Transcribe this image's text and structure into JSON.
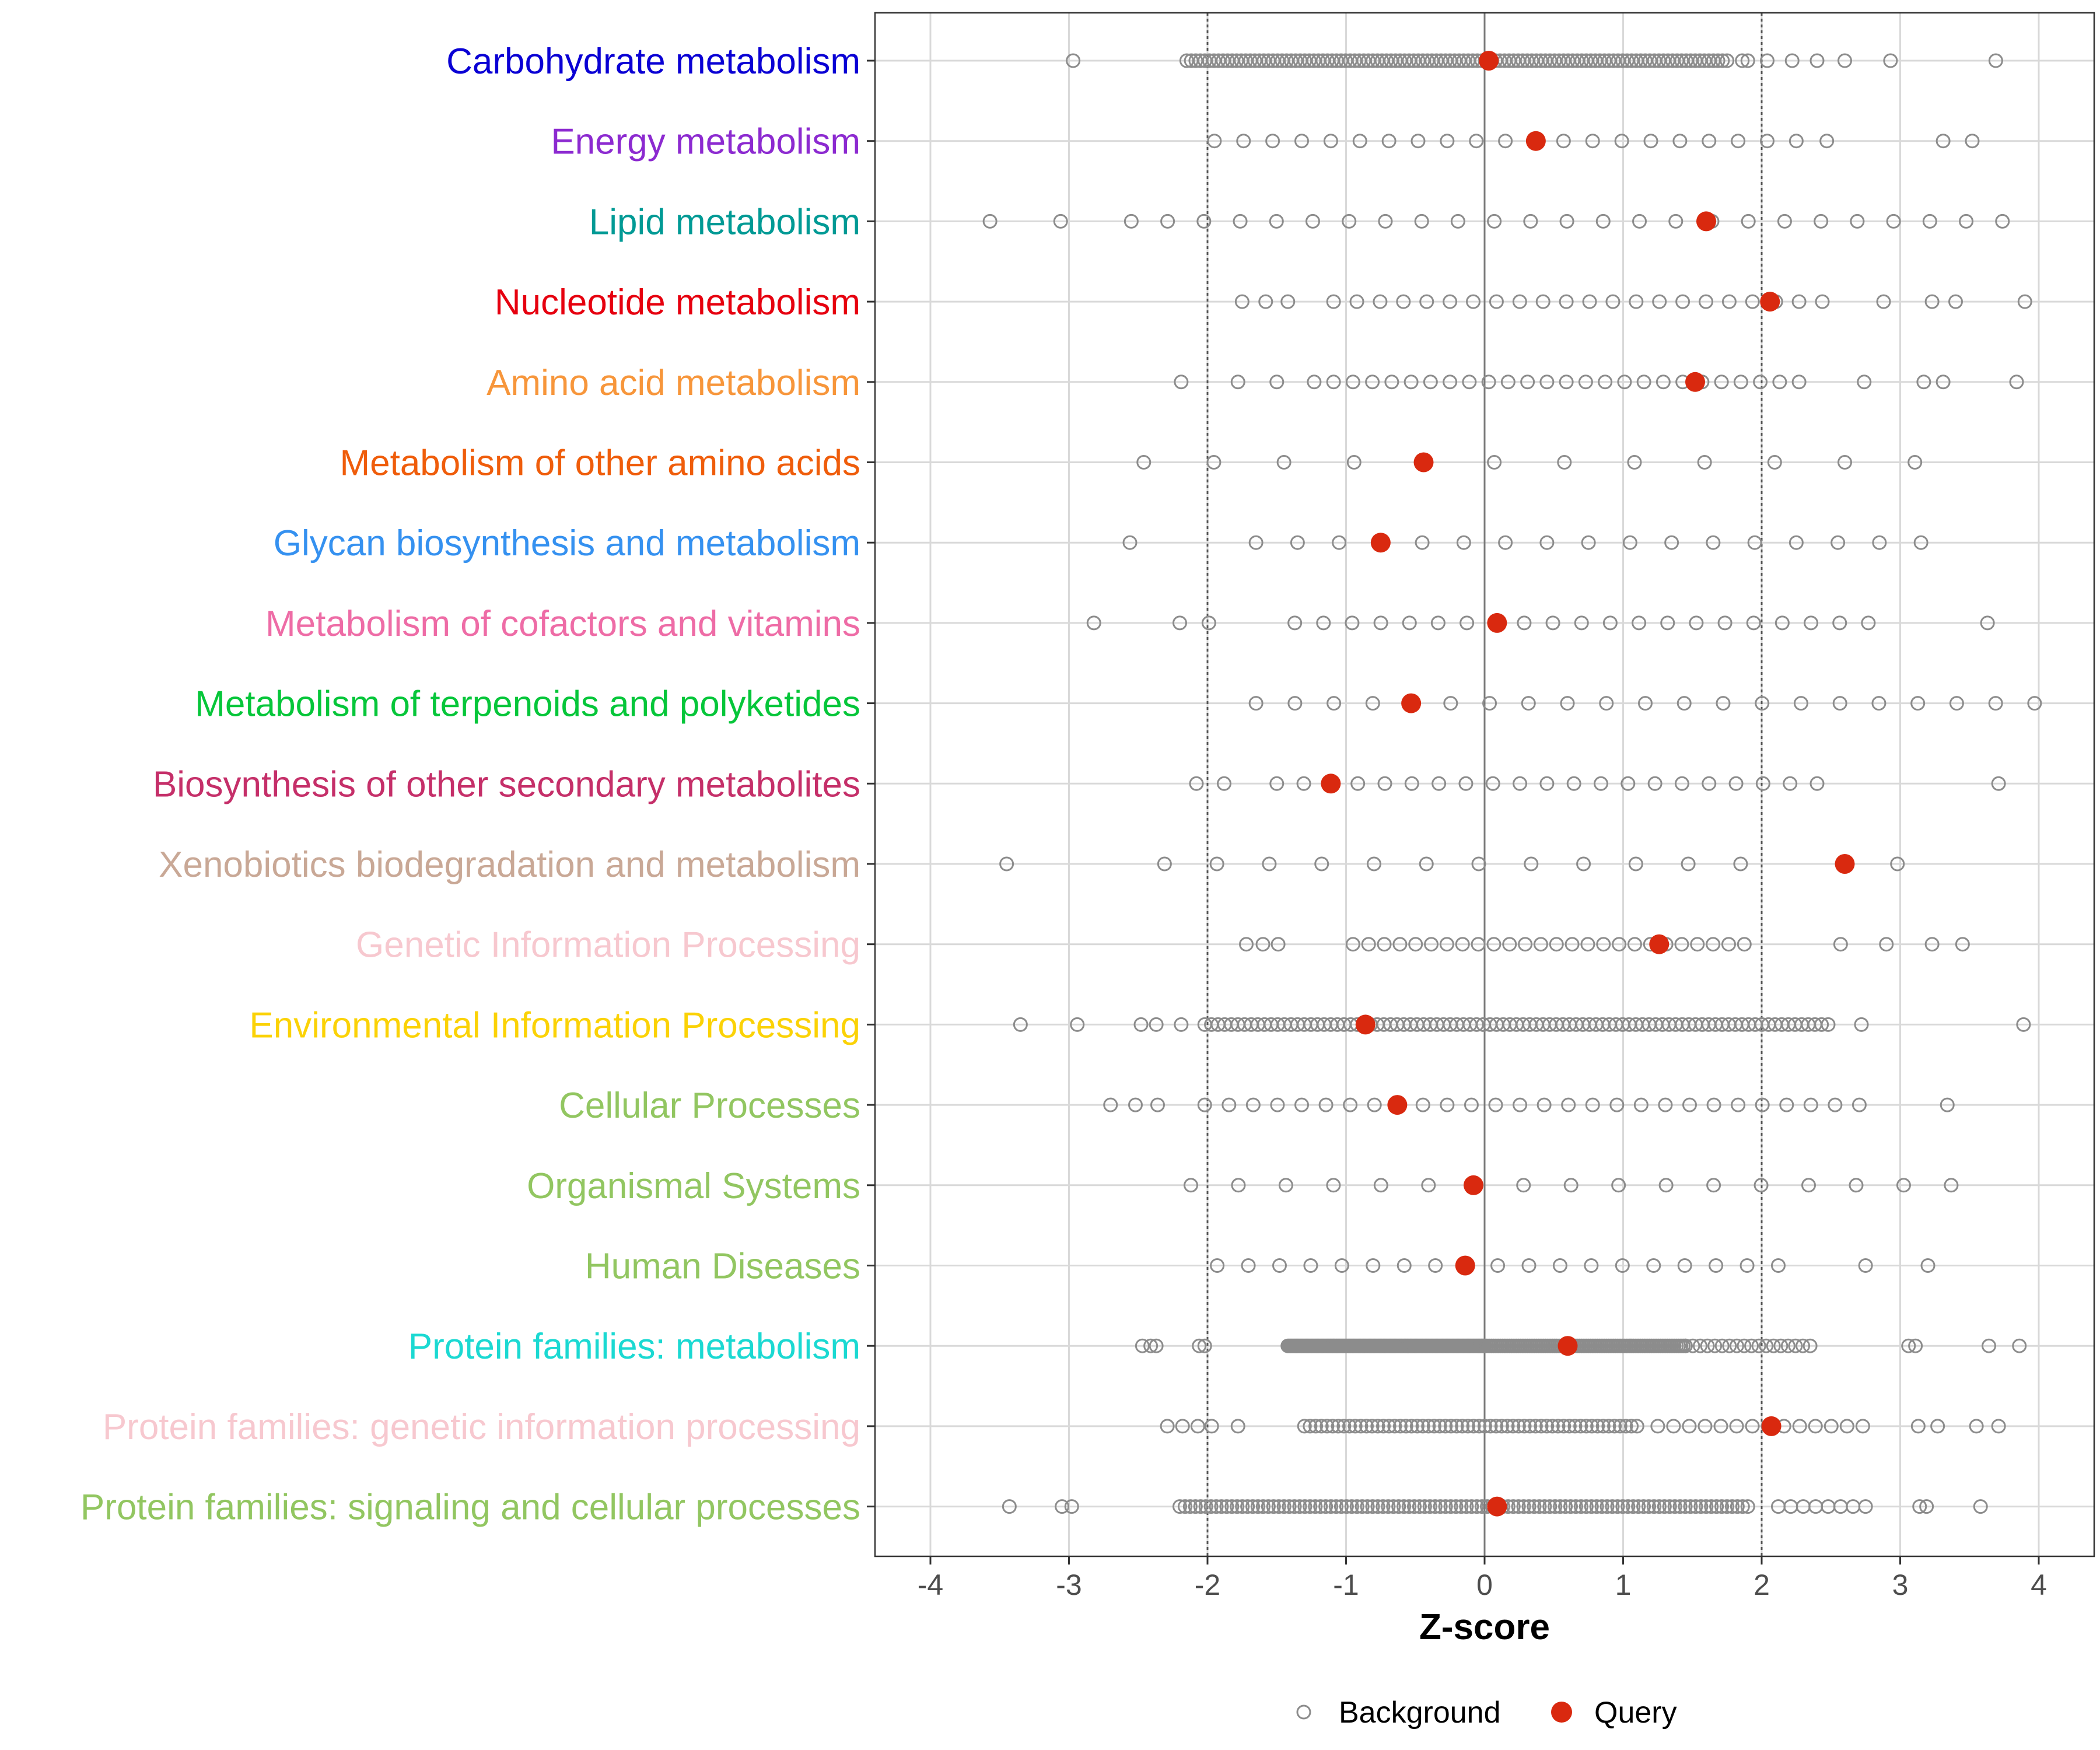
{
  "chart_data": {
    "type": "scatter",
    "title": "",
    "xlabel": "Z-score",
    "ylabel": "",
    "xlim": [
      -4.4,
      4.4
    ],
    "x_ticks": [
      -4,
      -3,
      -2,
      -1,
      0,
      1,
      2,
      3,
      4
    ],
    "x_tick_labels": [
      "-4",
      "-3",
      "-2",
      "-1",
      "0",
      "1",
      "2",
      "3",
      "4"
    ],
    "reference_lines": [
      -2,
      0,
      2
    ],
    "grid": true,
    "legend": {
      "position": "bottom",
      "items": [
        {
          "key": "background",
          "label": "Background",
          "marker": "open-circle",
          "color": "#8c8c8c"
        },
        {
          "key": "query",
          "label": "Query",
          "marker": "filled-circle",
          "color": "#d9290f"
        }
      ]
    },
    "categories": [
      {
        "label": "Carbohydrate metabolism",
        "color": "#0a00d4",
        "query": 0.03,
        "background": {
          "values": [
            -2.97,
            3.69,
            2.93,
            2.6,
            2.4,
            2.22,
            2.04,
            1.9,
            1.86
          ],
          "dense": [
            {
              "from": -2.15,
              "to": 1.75,
              "n": 120
            }
          ]
        }
      },
      {
        "label": "Energy metabolism",
        "color": "#8c2ad0",
        "query": 0.37,
        "background": {
          "values": [
            3.31,
            3.52,
            2.47
          ],
          "spaced": {
            "from": -1.95,
            "to": 2.26,
            "step": 0.21
          }
        }
      },
      {
        "label": "Lipid metabolism",
        "color": "#009a95",
        "query": 1.6,
        "background": {
          "values": [
            -3.57,
            -3.06
          ],
          "spaced": {
            "from": -2.55,
            "to": 3.93,
            "step": 0.262
          }
        }
      },
      {
        "label": "Nucleotide metabolism",
        "color": "#e6000f",
        "query": 2.06,
        "background": {
          "values": [
            -1.75,
            -1.58,
            -1.42,
            2.88,
            3.23,
            3.4,
            3.9
          ],
          "spaced": {
            "from": -1.09,
            "to": 2.56,
            "step": 0.168
          }
        }
      },
      {
        "label": "Amino acid metabolism",
        "color": "#f7963b",
        "query": 1.52,
        "background": {
          "values": [
            -2.19,
            -1.78,
            -1.5,
            2.74,
            3.17,
            3.31,
            3.84
          ],
          "spaced": {
            "from": -1.23,
            "to": 2.35,
            "step": 0.14
          }
        }
      },
      {
        "label": "Metabolism of other amino acids",
        "color": "#ef5d0b",
        "query": -0.44,
        "background": {
          "values": [],
          "spaced": {
            "from": -2.46,
            "to": 3.61,
            "step": 0.506
          }
        }
      },
      {
        "label": "Glycan biosynthesis and metabolism",
        "color": "#3591f0",
        "query": -0.75,
        "background": {
          "values": [
            -2.56
          ],
          "spaced": {
            "from": -1.65,
            "to": 3.44,
            "step": 0.3
          }
        }
      },
      {
        "label": "Metabolism of cofactors and vitamins",
        "color": "#ee6ca6",
        "query": 0.09,
        "background": {
          "values": [
            -2.82,
            -2.2,
            -1.99,
            3.63
          ],
          "spaced": {
            "from": -1.37,
            "to": 2.77,
            "step": 0.207
          }
        }
      },
      {
        "label": "Metabolism of terpenoids and polyketides",
        "color": "#06c63a",
        "query": -0.53,
        "background": {
          "values": [],
          "spaced": {
            "from": -1.65,
            "to": 3.98,
            "step": 0.281
          }
        }
      },
      {
        "label": "Biosynthesis of other secondary metabolites",
        "color": "#c52f69",
        "query": -1.11,
        "background": {
          "values": [
            -2.08,
            -1.88,
            3.71
          ],
          "spaced": {
            "from": -1.5,
            "to": 2.55,
            "step": 0.195
          }
        }
      },
      {
        "label": "Xenobiotics biodegradation and metabolism",
        "color": "#c9a896",
        "query": 2.6,
        "background": {
          "values": [
            -3.45,
            2.98
          ],
          "spaced": {
            "from": -2.31,
            "to": 2.22,
            "step": 0.378
          }
        }
      },
      {
        "label": "Genetic Information Processing",
        "color": "#f7c8cf",
        "query": 1.26,
        "background": {
          "values": [
            -1.72,
            -1.6,
            -1.49,
            2.57,
            2.9,
            3.23,
            3.45
          ],
          "spaced": {
            "from": -0.95,
            "to": 1.93,
            "step": 0.113
          }
        }
      },
      {
        "label": "Environmental Information Processing",
        "color": "#fbd206",
        "query": -0.86,
        "background": {
          "values": [
            -3.35,
            -2.94,
            -2.48,
            -2.37,
            -2.19,
            2.72,
            3.89
          ],
          "dense": [
            {
              "from": -2.02,
              "to": 2.48,
              "n": 95
            }
          ]
        }
      },
      {
        "label": "Cellular Processes",
        "color": "#92c661",
        "query": -0.63,
        "background": {
          "values": [
            -2.7,
            -2.52,
            -2.36,
            3.34
          ],
          "spaced": {
            "from": -2.02,
            "to": 2.82,
            "step": 0.175
          }
        }
      },
      {
        "label": "Organismal Systems",
        "color": "#92c661",
        "query": -0.08,
        "background": {
          "values": [],
          "spaced": {
            "from": -2.12,
            "to": 3.64,
            "step": 0.343
          }
        }
      },
      {
        "label": "Human Diseases",
        "color": "#92c661",
        "query": -0.14,
        "background": {
          "values": [
            2.75,
            3.2
          ],
          "spaced": {
            "from": -1.93,
            "to": 2.31,
            "step": 0.225
          }
        }
      },
      {
        "label": "Protein families: metabolism",
        "color": "#1bd9d2",
        "query": 0.6,
        "background": {
          "values": [
            -2.47,
            -2.41,
            -2.37,
            -2.06,
            -2.02,
            3.06,
            3.11,
            3.64,
            3.86
          ],
          "dense": [
            {
              "from": -1.42,
              "to": 0.0,
              "n": 160
            },
            {
              "from": 0.0,
              "to": 1.45,
              "n": 90
            },
            {
              "from": 1.45,
              "to": 2.35,
              "n": 18
            }
          ]
        }
      },
      {
        "label": "Protein families: genetic information processing",
        "color": "#f7c8cf",
        "query": 2.07,
        "background": {
          "values": [
            -2.29,
            -2.18,
            -2.07,
            -1.97,
            -1.78,
            3.13,
            3.27,
            3.55,
            3.71
          ],
          "dense": [
            {
              "from": -1.3,
              "to": 1.1,
              "n": 60
            },
            {
              "from": 1.25,
              "to": 2.73,
              "n": 14
            }
          ]
        }
      },
      {
        "label": "Protein families: signaling and cellular processes",
        "color": "#92c661",
        "query": 0.09,
        "background": {
          "values": [
            -3.43,
            -3.05,
            -2.98,
            3.14,
            3.19,
            3.58
          ],
          "dense": [
            {
              "from": -2.2,
              "to": 1.9,
              "n": 110
            },
            {
              "from": 2.12,
              "to": 2.75,
              "n": 8
            }
          ]
        }
      }
    ]
  }
}
